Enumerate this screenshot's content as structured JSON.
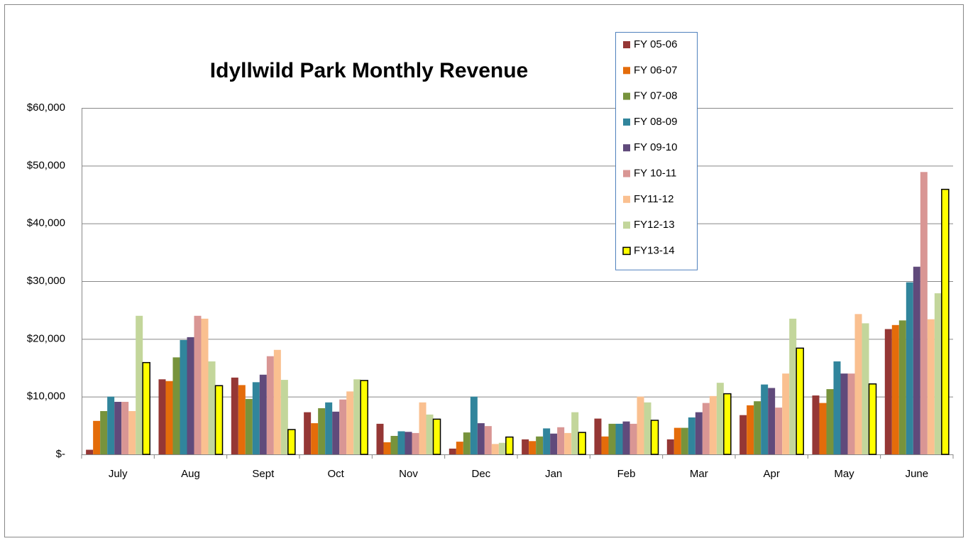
{
  "chart_data": {
    "type": "bar",
    "title": "Idyllwild Park Monthly Revenue",
    "categories": [
      "July",
      "Aug",
      "Sept",
      "Oct",
      "Nov",
      "Dec",
      "Jan",
      "Feb",
      "Mar",
      "Apr",
      "May",
      "June"
    ],
    "series": [
      {
        "name": "FY 05-06",
        "color": "#953735",
        "values": [
          800,
          13000,
          13300,
          7300,
          5300,
          1000,
          2600,
          6200,
          2600,
          6800,
          10200,
          21700
        ]
      },
      {
        "name": "FY 06-07",
        "color": "#e46c0a",
        "values": [
          5800,
          12700,
          12000,
          5400,
          2100,
          2200,
          2300,
          3100,
          4600,
          8500,
          8900,
          22400
        ]
      },
      {
        "name": "FY 07-08",
        "color": "#77933c",
        "values": [
          7500,
          16800,
          9600,
          8000,
          3200,
          3800,
          3100,
          5300,
          4600,
          9200,
          11300,
          23200
        ]
      },
      {
        "name": "FY 08-09",
        "color": "#31859c",
        "values": [
          10000,
          19800,
          12500,
          9000,
          4000,
          10000,
          4500,
          5300,
          6400,
          12100,
          16100,
          29800
        ]
      },
      {
        "name": "FY 09-10",
        "color": "#604a7b",
        "values": [
          9100,
          20300,
          13800,
          7400,
          3900,
          5400,
          3600,
          5700,
          7300,
          11500,
          14000,
          32500
        ]
      },
      {
        "name": "FY 10-11",
        "color": "#d99694",
        "values": [
          9100,
          24000,
          17000,
          9500,
          3700,
          4900,
          4700,
          5300,
          8900,
          8100,
          14000,
          48900
        ]
      },
      {
        "name": "FY11-12",
        "color": "#fac090",
        "values": [
          7500,
          23500,
          18100,
          10900,
          9000,
          1800,
          3700,
          10000,
          10100,
          14000,
          24300,
          23400
        ]
      },
      {
        "name": "FY12-13",
        "color": "#c3d69b",
        "values": [
          24000,
          16100,
          12900,
          13000,
          6900,
          2000,
          7300,
          9000,
          12400,
          23500,
          22700,
          27900
        ]
      },
      {
        "name": "FY13-14",
        "color": "#ffff00",
        "edgecolor": "#000000",
        "values": [
          15900,
          11900,
          4300,
          12800,
          6100,
          3000,
          3800,
          5900,
          10500,
          18400,
          12200,
          45900
        ]
      }
    ],
    "ylim": [
      0,
      60000
    ],
    "yticks": [
      {
        "value": 0,
        "label": "$-"
      },
      {
        "value": 10000,
        "label": "$10,000"
      },
      {
        "value": 20000,
        "label": "$20,000"
      },
      {
        "value": 30000,
        "label": "$30,000"
      },
      {
        "value": 40000,
        "label": "$40,000"
      },
      {
        "value": 50000,
        "label": "$50,000"
      },
      {
        "value": 60000,
        "label": "$60,000"
      }
    ],
    "grid": true,
    "legend": "top"
  }
}
